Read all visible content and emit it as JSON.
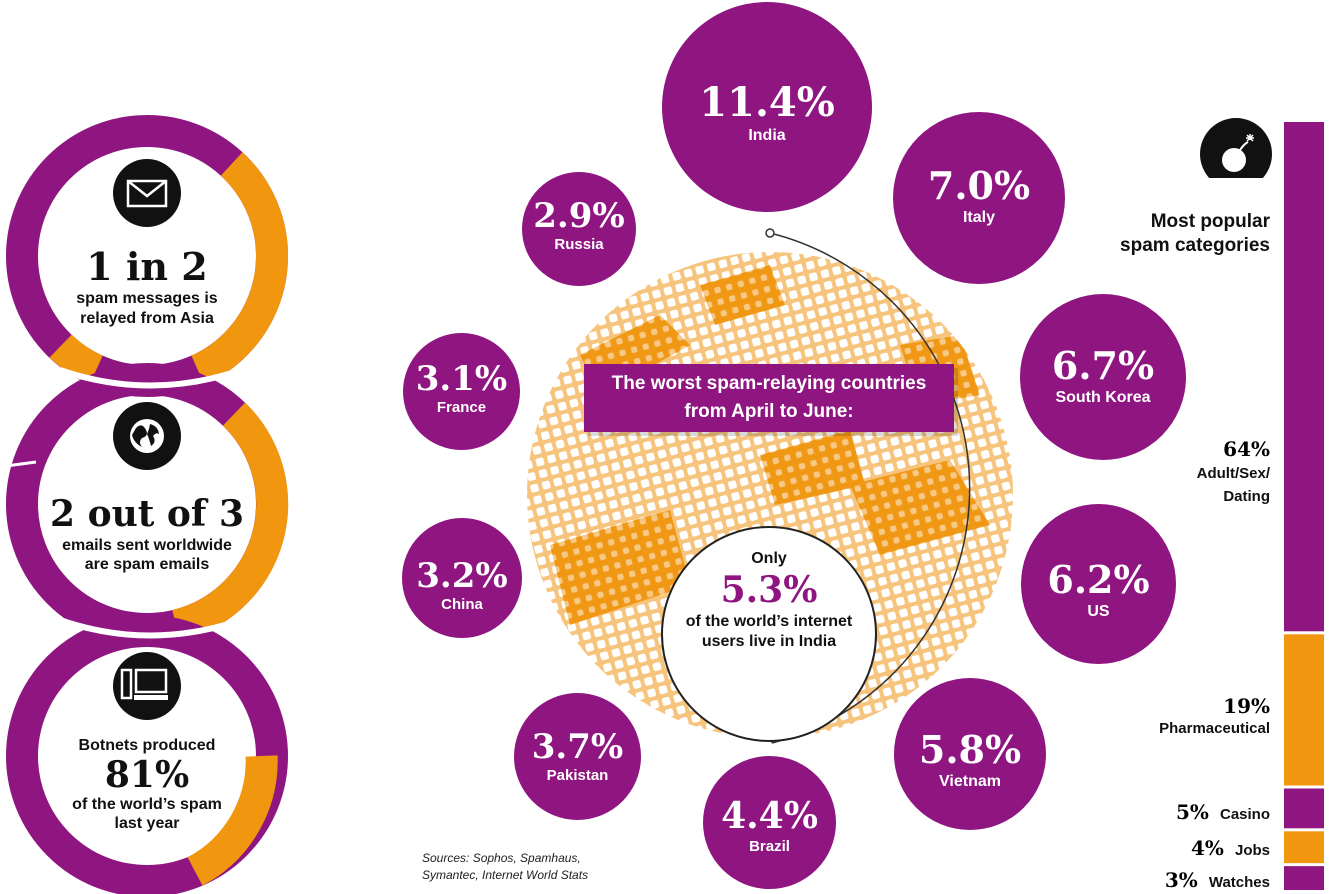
{
  "colors": {
    "purple": "#8f1580",
    "orange": "#f0960f",
    "black": "#111111"
  },
  "stats": [
    {
      "icon": "envelope-icon",
      "big": "1 in 2",
      "line1": "spam messages is",
      "line2": "relayed from Asia"
    },
    {
      "icon": "globe-icon",
      "big": "2 out of 3",
      "line1": "emails sent worldwide",
      "line2": "are spam emails"
    },
    {
      "icon": "computer-icon",
      "top": "Botnets produced",
      "big": "81%",
      "line1": "of the world’s spam",
      "line2": "last year"
    }
  ],
  "center": {
    "title_line1": "The worst spam-relaying countries",
    "title_line2": "from April to June:",
    "only": "Only",
    "pct": "5.3%",
    "line1": "of the world’s internet",
    "line2": "users live in India"
  },
  "countries": [
    {
      "pct": "11.4%",
      "name": "India"
    },
    {
      "pct": "7.0%",
      "name": "Italy"
    },
    {
      "pct": "6.7%",
      "name": "South Korea"
    },
    {
      "pct": "6.2%",
      "name": "US"
    },
    {
      "pct": "5.8%",
      "name": "Vietnam"
    },
    {
      "pct": "4.4%",
      "name": "Brazil"
    },
    {
      "pct": "3.7%",
      "name": "Pakistan"
    },
    {
      "pct": "3.2%",
      "name": "China"
    },
    {
      "pct": "3.1%",
      "name": "France"
    },
    {
      "pct": "2.9%",
      "name": "Russia"
    }
  ],
  "categories": {
    "title_line1": "Most popular",
    "title_line2": "spam categories",
    "icon": "bomb-icon",
    "items": [
      {
        "pct": "64%",
        "label": "Adult/Sex/Dating",
        "label_lines": [
          "Adult/Sex/",
          "Dating"
        ],
        "share": 64,
        "color": "#8f1580"
      },
      {
        "pct": "19%",
        "label": "Pharmaceutical",
        "share": 19,
        "color": "#f0960f"
      },
      {
        "pct": "5%",
        "label": "Casino",
        "share": 5,
        "color": "#8f1580"
      },
      {
        "pct": "4%",
        "label": "Jobs",
        "share": 4,
        "color": "#f0960f"
      },
      {
        "pct": "3%",
        "label": "Watches",
        "share": 3,
        "color": "#8f1580"
      }
    ]
  },
  "sources_line1": "Sources: Sophos, Spamhaus,",
  "sources_line2": "Symantec, Internet World Stats"
}
